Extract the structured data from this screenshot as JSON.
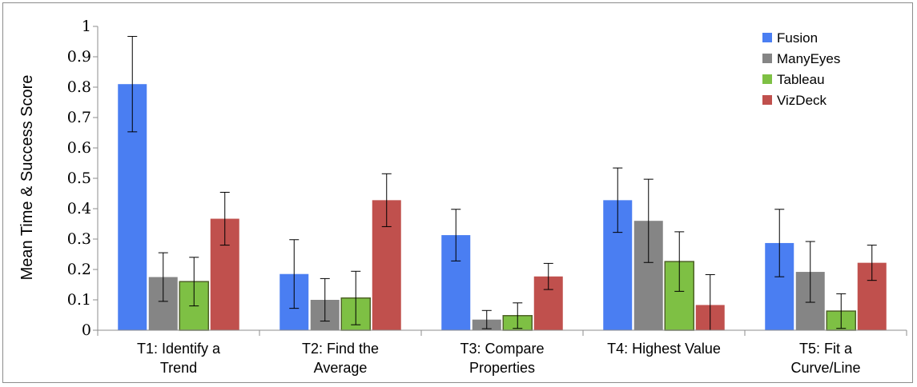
{
  "chart_data": {
    "type": "bar",
    "ylabel": "Mean Time & Success Score",
    "ylim": [
      0,
      1
    ],
    "yticks": [
      "0",
      "0.1",
      "0.2",
      "0.3",
      "0.4",
      "0.5",
      "0.6",
      "0.7",
      "0.8",
      "0.9",
      "1"
    ],
    "categories": [
      [
        "T1: Identify a",
        "Trend"
      ],
      [
        "T2: Find the",
        "Average"
      ],
      [
        "T3: Compare",
        "Properties"
      ],
      [
        "T4: Highest Value"
      ],
      [
        "T5: Fit a",
        "Curve/Line"
      ]
    ],
    "series": [
      {
        "name": "Fusion",
        "color": "#4a7ef2",
        "values": [
          0.81,
          0.185,
          0.313,
          0.428,
          0.287
        ],
        "error": [
          0.157,
          0.113,
          0.085,
          0.106,
          0.111
        ]
      },
      {
        "name": "ManyEyes",
        "color": "#858585",
        "values": [
          0.175,
          0.1,
          0.035,
          0.36,
          0.192
        ],
        "error": [
          0.08,
          0.07,
          0.03,
          0.137,
          0.1
        ]
      },
      {
        "name": "Tableau",
        "color": "#7ec044",
        "values": [
          0.16,
          0.106,
          0.048,
          0.226,
          0.063
        ],
        "error": [
          0.08,
          0.088,
          0.042,
          0.098,
          0.057
        ]
      },
      {
        "name": "VizDeck",
        "color": "#c0504d",
        "values": [
          0.367,
          0.428,
          0.177,
          0.083,
          0.222
        ],
        "error": [
          0.087,
          0.087,
          0.043,
          0.1,
          0.058
        ]
      }
    ],
    "legend": "top-right",
    "grid": false
  }
}
